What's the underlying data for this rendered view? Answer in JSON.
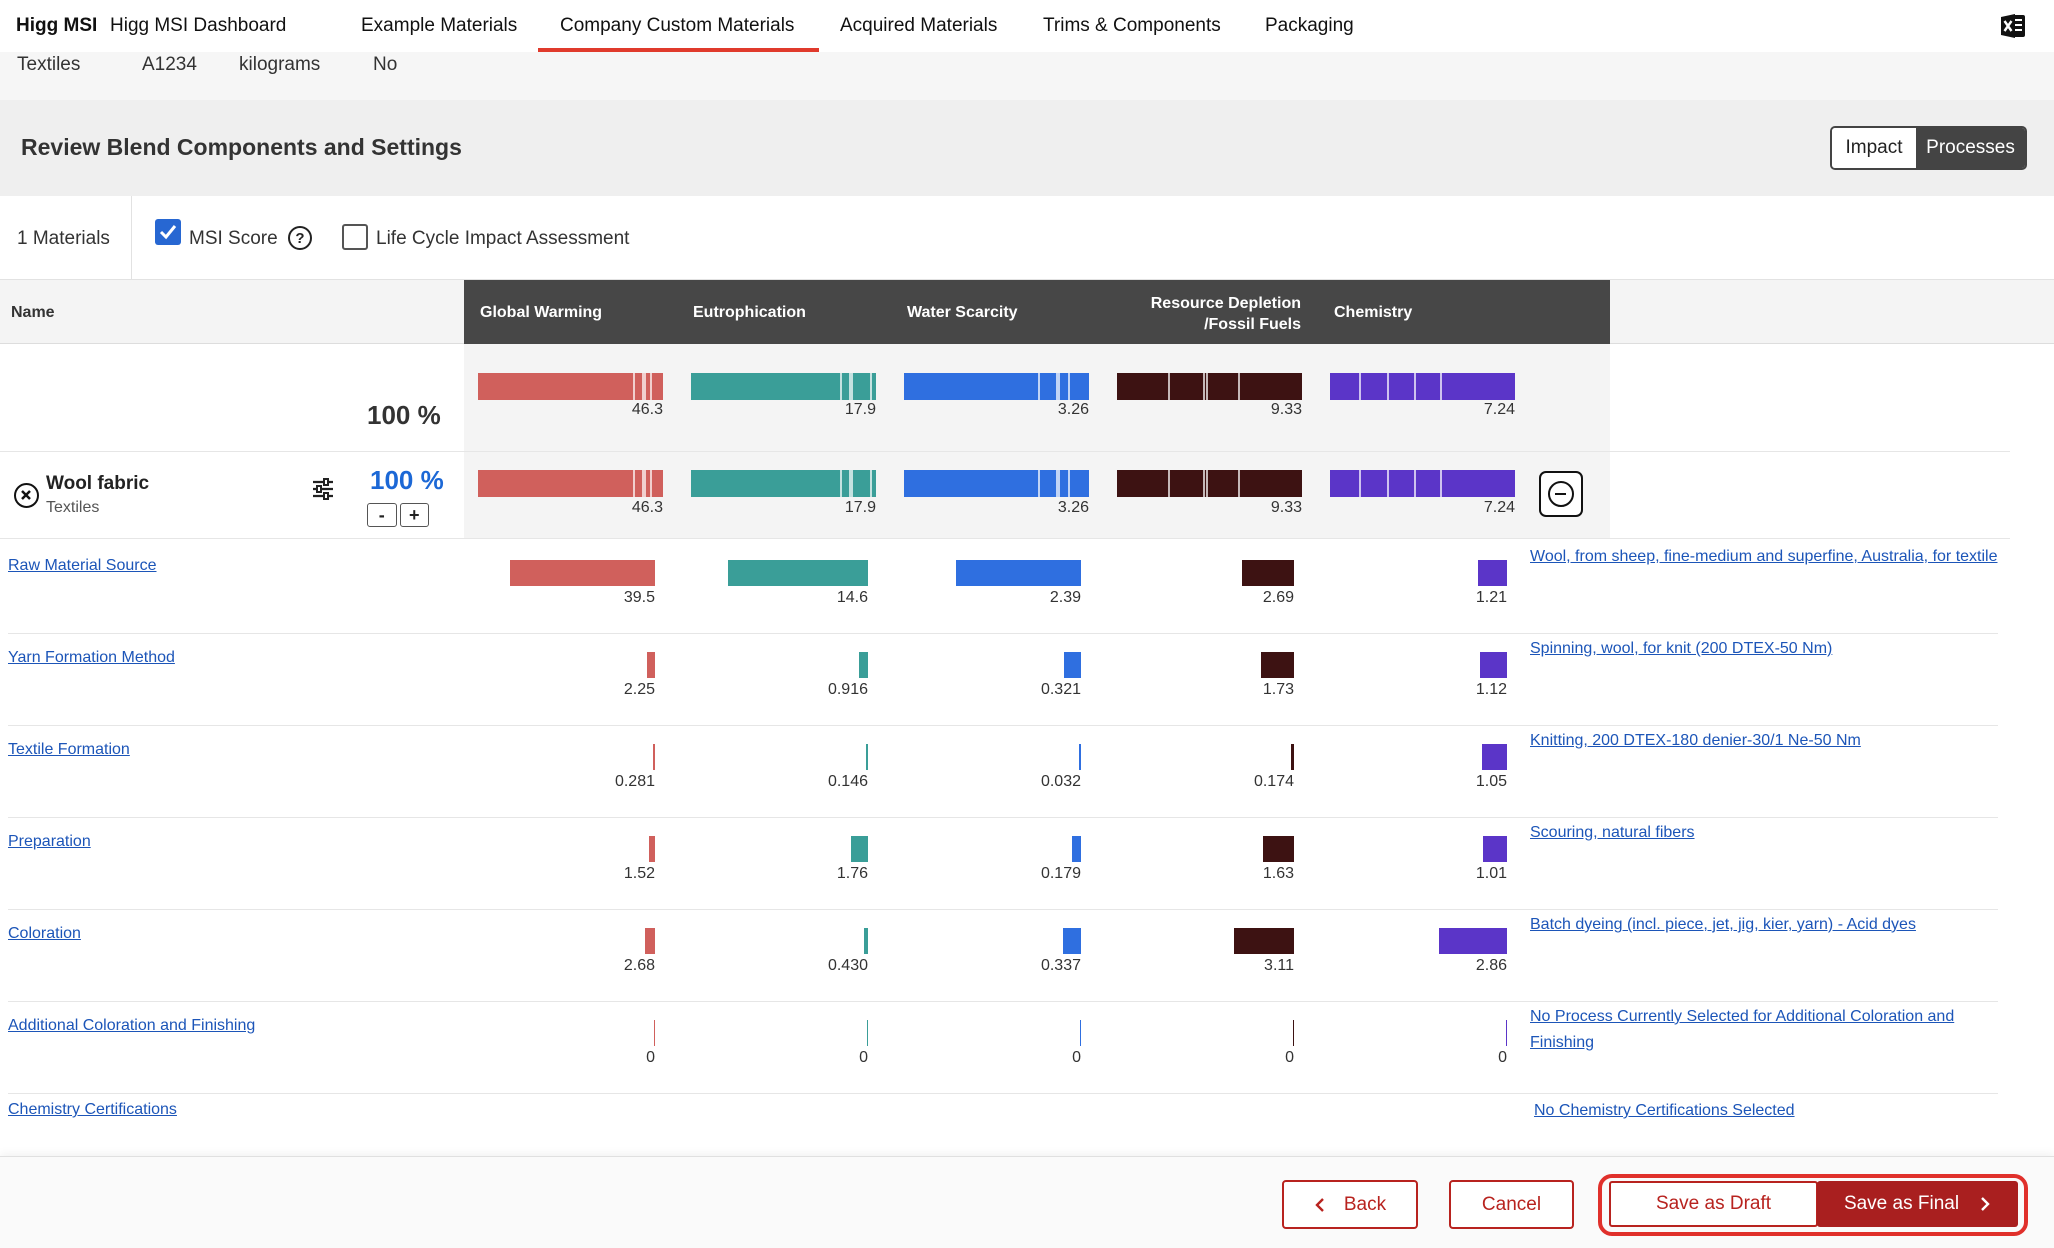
{
  "nav": {
    "brand": "Higg MSI",
    "items": [
      "Higg MSI Dashboard",
      "Example Materials",
      "Company Custom Materials",
      "Acquired Materials",
      "Trims & Components",
      "Packaging"
    ],
    "active": "Company Custom Materials",
    "export_icon": "excel-icon"
  },
  "summary": {
    "category": "Textiles",
    "code": "A1234",
    "unit": "kilograms",
    "flag": "No"
  },
  "review": {
    "title": "Review Blend Components and Settings",
    "toggle_impact": "Impact",
    "toggle_processes": "Processes",
    "selected": "Processes"
  },
  "options": {
    "materials_count": "1 Materials",
    "msi_score_label": "MSI Score",
    "msi_score_checked": true,
    "lcia_label": "Life Cycle Impact Assessment",
    "lcia_checked": false
  },
  "table": {
    "name_header": "Name",
    "categories": [
      {
        "label": "Global Warming",
        "color": "#d0605c"
      },
      {
        "label": "Eutrophication",
        "color": "#3a9e98"
      },
      {
        "label": "Water Scarcity",
        "color": "#2f6fe0"
      },
      {
        "label_line1": "Resource Depletion",
        "label_line2": "/Fossil Fuels",
        "color": "#3d1212"
      },
      {
        "label": "Chemistry",
        "color": "#5b35c8"
      }
    ],
    "total": {
      "percent": "100 %",
      "values": [
        "46.3",
        "17.9",
        "3.26",
        "9.33",
        "7.24"
      ]
    },
    "material": {
      "name": "Wool fabric",
      "category": "Textiles",
      "percent": "100 %",
      "minus": "-",
      "plus": "+",
      "values": [
        "46.3",
        "17.9",
        "3.26",
        "9.33",
        "7.24"
      ]
    },
    "processes": [
      {
        "name": "Raw Material Source",
        "values": [
          "39.5",
          "14.6",
          "2.39",
          "2.69",
          "1.21"
        ],
        "selection": "Wool, from sheep, fine-medium and superfine, Australia, for textile"
      },
      {
        "name": "Yarn Formation Method",
        "values": [
          "2.25",
          "0.916",
          "0.321",
          "1.73",
          "1.12"
        ],
        "selection": "Spinning, wool, for knit (200 DTEX-50 Nm)"
      },
      {
        "name": "Textile Formation",
        "values": [
          "0.281",
          "0.146",
          "0.032",
          "0.174",
          "1.05"
        ],
        "selection": "Knitting, 200 DTEX-180 denier-30/1 Ne-50 Nm"
      },
      {
        "name": "Preparation",
        "values": [
          "1.52",
          "1.76",
          "0.179",
          "1.63",
          "1.01"
        ],
        "selection": "Scouring, natural fibers"
      },
      {
        "name": "Coloration",
        "values": [
          "2.68",
          "0.430",
          "0.337",
          "3.11",
          "2.86"
        ],
        "selection": "Batch dyeing (incl. piece, jet, jig, kier, yarn) - Acid dyes"
      },
      {
        "name": "Additional Coloration and Finishing",
        "values": [
          "0",
          "0",
          "0",
          "0",
          "0"
        ],
        "selection": "No Process Currently Selected for Additional Coloration and Finishing"
      }
    ],
    "certifications": {
      "name": "Chemistry Certifications",
      "selection": "No Chemistry Certifications Selected"
    }
  },
  "footer": {
    "back": "Back",
    "cancel": "Cancel",
    "save_draft": "Save as Draft",
    "save_final": "Save as Final"
  }
}
